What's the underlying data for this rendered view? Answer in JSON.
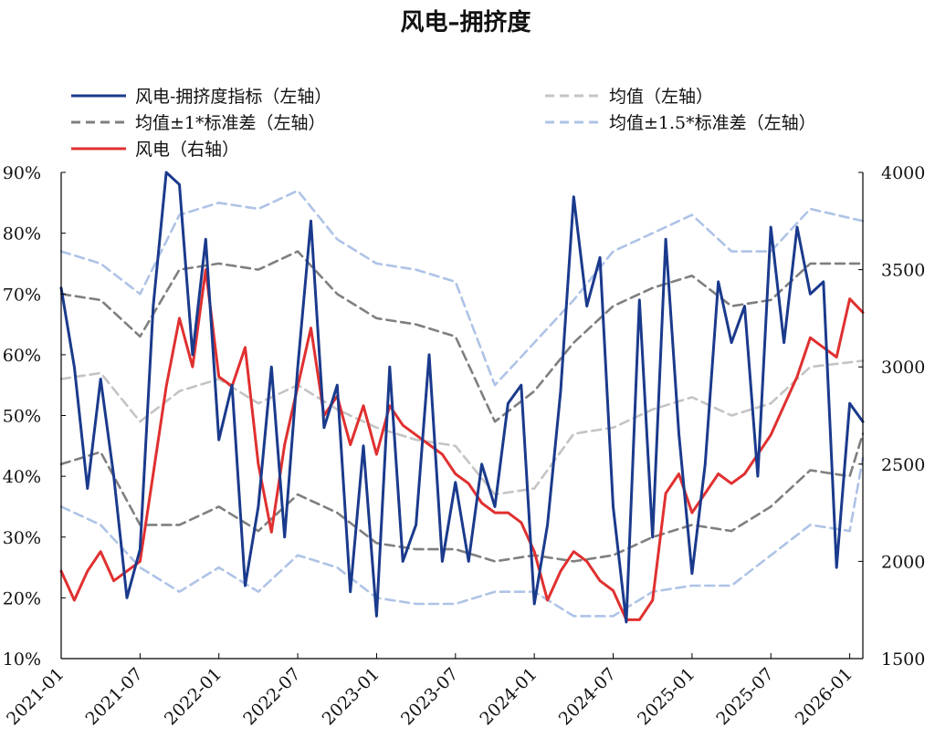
{
  "chart_data": {
    "type": "line",
    "title": "风电–拥挤度",
    "x_axis": {
      "type": "date",
      "range": [
        "2021-01",
        "2026-02"
      ],
      "ticks": [
        "2021-01",
        "2021-07",
        "2022-01",
        "2022-07",
        "2023-01",
        "2023-07",
        "2024-01",
        "2024-07",
        "2025-01",
        "2025-07",
        "2026-01"
      ]
    },
    "y_left": {
      "range": [
        10,
        90
      ],
      "ticks": [
        90,
        80,
        70,
        60,
        50,
        40,
        30,
        20,
        10
      ],
      "tick_labels": [
        "90%",
        "80%",
        "70%",
        "60%",
        "50%",
        "40%",
        "30%",
        "20%",
        "10%"
      ]
    },
    "y_right": {
      "range": [
        1500,
        4000
      ],
      "ticks": [
        4000,
        3500,
        3000,
        2500,
        2000,
        1500
      ],
      "tick_labels": [
        "4000",
        "3500",
        "3000",
        "2500",
        "2000",
        "1500"
      ]
    },
    "grid": false,
    "legend_position": "top",
    "series": [
      {
        "name": "风电-拥挤度指标（左轴）",
        "axis": "left",
        "color": "#1a3a8c",
        "dash": "solid",
        "points": [
          [
            "2021-01",
            71
          ],
          [
            "2021-02",
            58
          ],
          [
            "2021-03",
            38
          ],
          [
            "2021-04",
            56
          ],
          [
            "2021-05",
            40
          ],
          [
            "2021-06",
            20
          ],
          [
            "2021-07",
            28
          ],
          [
            "2021-08",
            68
          ],
          [
            "2021-09",
            90
          ],
          [
            "2021-10",
            88
          ],
          [
            "2021-11",
            60
          ],
          [
            "2021-12",
            79
          ],
          [
            "2022-01",
            46
          ],
          [
            "2022-02",
            55
          ],
          [
            "2022-03",
            22
          ],
          [
            "2022-04",
            35
          ],
          [
            "2022-05",
            58
          ],
          [
            "2022-06",
            30
          ],
          [
            "2022-07",
            58
          ],
          [
            "2022-08",
            82
          ],
          [
            "2022-09",
            48
          ],
          [
            "2022-10",
            55
          ],
          [
            "2022-11",
            21
          ],
          [
            "2022-12",
            45
          ],
          [
            "2023-01",
            17
          ],
          [
            "2023-02",
            58
          ],
          [
            "2023-03",
            26
          ],
          [
            "2023-04",
            32
          ],
          [
            "2023-05",
            60
          ],
          [
            "2023-06",
            26
          ],
          [
            "2023-07",
            39
          ],
          [
            "2023-08",
            26
          ],
          [
            "2023-09",
            42
          ],
          [
            "2023-10",
            35
          ],
          [
            "2023-11",
            52
          ],
          [
            "2023-12",
            55
          ],
          [
            "2024-01",
            19
          ],
          [
            "2024-02",
            32
          ],
          [
            "2024-03",
            54
          ],
          [
            "2024-04",
            86
          ],
          [
            "2024-05",
            68
          ],
          [
            "2024-06",
            76
          ],
          [
            "2024-07",
            35
          ],
          [
            "2024-08",
            16
          ],
          [
            "2024-09",
            69
          ],
          [
            "2024-10",
            30
          ],
          [
            "2024-11",
            79
          ],
          [
            "2024-12",
            47
          ],
          [
            "2025-01",
            24
          ],
          [
            "2025-02",
            42
          ],
          [
            "2025-03",
            72
          ],
          [
            "2025-04",
            62
          ],
          [
            "2025-05",
            68
          ],
          [
            "2025-06",
            40
          ],
          [
            "2025-07",
            81
          ],
          [
            "2025-08",
            62
          ],
          [
            "2025-09",
            81
          ],
          [
            "2025-10",
            70
          ],
          [
            "2025-11",
            72
          ],
          [
            "2025-12",
            25
          ],
          [
            "2026-01",
            52
          ],
          [
            "2026-02",
            49
          ]
        ]
      },
      {
        "name": "均值（左轴）",
        "axis": "left",
        "color": "#c4c4c4",
        "dash": "dashed",
        "points": [
          [
            "2021-01",
            56
          ],
          [
            "2021-04",
            57
          ],
          [
            "2021-07",
            49
          ],
          [
            "2021-10",
            54
          ],
          [
            "2022-01",
            56
          ],
          [
            "2022-04",
            52
          ],
          [
            "2022-07",
            55
          ],
          [
            "2022-10",
            51
          ],
          [
            "2023-01",
            48
          ],
          [
            "2023-04",
            46
          ],
          [
            "2023-07",
            45
          ],
          [
            "2023-10",
            37
          ],
          [
            "2024-01",
            38
          ],
          [
            "2024-04",
            47
          ],
          [
            "2024-07",
            48
          ],
          [
            "2024-10",
            51
          ],
          [
            "2025-01",
            53
          ],
          [
            "2025-04",
            50
          ],
          [
            "2025-07",
            52
          ],
          [
            "2025-10",
            58
          ],
          [
            "2026-02",
            59
          ]
        ]
      },
      {
        "name": "均值±1*标准差（左轴）",
        "axis": "left",
        "color": "#7f7f7f",
        "dash": "dashed",
        "upper": [
          [
            "2021-01",
            70
          ],
          [
            "2021-04",
            69
          ],
          [
            "2021-07",
            63
          ],
          [
            "2021-10",
            74
          ],
          [
            "2022-01",
            75
          ],
          [
            "2022-04",
            74
          ],
          [
            "2022-07",
            77
          ],
          [
            "2022-10",
            70
          ],
          [
            "2023-01",
            66
          ],
          [
            "2023-04",
            65
          ],
          [
            "2023-07",
            63
          ],
          [
            "2023-10",
            49
          ],
          [
            "2024-01",
            54
          ],
          [
            "2024-04",
            62
          ],
          [
            "2024-07",
            68
          ],
          [
            "2024-10",
            71
          ],
          [
            "2025-01",
            73
          ],
          [
            "2025-04",
            68
          ],
          [
            "2025-07",
            69
          ],
          [
            "2025-10",
            75
          ],
          [
            "2026-02",
            75
          ]
        ],
        "lower": [
          [
            "2021-01",
            42
          ],
          [
            "2021-04",
            44
          ],
          [
            "2021-07",
            32
          ],
          [
            "2021-10",
            32
          ],
          [
            "2022-01",
            35
          ],
          [
            "2022-04",
            31
          ],
          [
            "2022-07",
            37
          ],
          [
            "2022-10",
            34
          ],
          [
            "2023-01",
            29
          ],
          [
            "2023-04",
            28
          ],
          [
            "2023-07",
            28
          ],
          [
            "2023-10",
            26
          ],
          [
            "2024-01",
            27
          ],
          [
            "2024-04",
            26
          ],
          [
            "2024-07",
            27
          ],
          [
            "2024-10",
            30
          ],
          [
            "2025-01",
            32
          ],
          [
            "2025-04",
            31
          ],
          [
            "2025-07",
            35
          ],
          [
            "2025-10",
            41
          ],
          [
            "2026-01",
            40
          ],
          [
            "2026-02",
            47
          ]
        ]
      },
      {
        "name": "均值±1.5*标准差（左轴）",
        "axis": "left",
        "color": "#aec3e6",
        "dash": "dashed",
        "upper": [
          [
            "2021-01",
            77
          ],
          [
            "2021-04",
            75
          ],
          [
            "2021-07",
            70
          ],
          [
            "2021-10",
            83
          ],
          [
            "2022-01",
            85
          ],
          [
            "2022-04",
            84
          ],
          [
            "2022-07",
            87
          ],
          [
            "2022-10",
            79
          ],
          [
            "2023-01",
            75
          ],
          [
            "2023-04",
            74
          ],
          [
            "2023-07",
            72
          ],
          [
            "2023-10",
            55
          ],
          [
            "2024-01",
            62
          ],
          [
            "2024-04",
            69
          ],
          [
            "2024-07",
            77
          ],
          [
            "2024-10",
            80
          ],
          [
            "2025-01",
            83
          ],
          [
            "2025-04",
            77
          ],
          [
            "2025-07",
            77
          ],
          [
            "2025-10",
            84
          ],
          [
            "2026-02",
            82
          ]
        ],
        "lower": [
          [
            "2021-01",
            35
          ],
          [
            "2021-04",
            32
          ],
          [
            "2021-07",
            25
          ],
          [
            "2021-10",
            21
          ],
          [
            "2022-01",
            25
          ],
          [
            "2022-04",
            21
          ],
          [
            "2022-07",
            27
          ],
          [
            "2022-10",
            25
          ],
          [
            "2023-01",
            20
          ],
          [
            "2023-04",
            19
          ],
          [
            "2023-07",
            19
          ],
          [
            "2023-10",
            21
          ],
          [
            "2024-01",
            21
          ],
          [
            "2024-04",
            17
          ],
          [
            "2024-07",
            17
          ],
          [
            "2024-10",
            21
          ],
          [
            "2025-01",
            22
          ],
          [
            "2025-04",
            22
          ],
          [
            "2025-07",
            27
          ],
          [
            "2025-10",
            32
          ],
          [
            "2026-01",
            31
          ],
          [
            "2026-02",
            43
          ]
        ]
      },
      {
        "name": "风电（右轴）",
        "axis": "right",
        "color": "#e03030",
        "dash": "solid",
        "points": [
          [
            "2021-01",
            1950
          ],
          [
            "2021-02",
            1800
          ],
          [
            "2021-03",
            1950
          ],
          [
            "2021-04",
            2050
          ],
          [
            "2021-05",
            1900
          ],
          [
            "2021-06",
            1950
          ],
          [
            "2021-07",
            2000
          ],
          [
            "2021-08",
            2450
          ],
          [
            "2021-09",
            2900
          ],
          [
            "2021-10",
            3250
          ],
          [
            "2021-11",
            3000
          ],
          [
            "2021-12",
            3500
          ],
          [
            "2022-01",
            2950
          ],
          [
            "2022-02",
            2900
          ],
          [
            "2022-03",
            3100
          ],
          [
            "2022-04",
            2500
          ],
          [
            "2022-05",
            2150
          ],
          [
            "2022-06",
            2600
          ],
          [
            "2022-07",
            2900
          ],
          [
            "2022-08",
            3200
          ],
          [
            "2022-09",
            2750
          ],
          [
            "2022-10",
            2850
          ],
          [
            "2022-11",
            2600
          ],
          [
            "2022-12",
            2800
          ],
          [
            "2023-01",
            2550
          ],
          [
            "2023-02",
            2800
          ],
          [
            "2023-03",
            2700
          ],
          [
            "2023-04",
            2650
          ],
          [
            "2023-05",
            2600
          ],
          [
            "2023-06",
            2550
          ],
          [
            "2023-07",
            2450
          ],
          [
            "2023-08",
            2400
          ],
          [
            "2023-09",
            2300
          ],
          [
            "2023-10",
            2250
          ],
          [
            "2023-11",
            2250
          ],
          [
            "2023-12",
            2200
          ],
          [
            "2024-01",
            2050
          ],
          [
            "2024-02",
            1800
          ],
          [
            "2024-03",
            1950
          ],
          [
            "2024-04",
            2050
          ],
          [
            "2024-05",
            2000
          ],
          [
            "2024-06",
            1900
          ],
          [
            "2024-07",
            1850
          ],
          [
            "2024-08",
            1700
          ],
          [
            "2024-09",
            1700
          ],
          [
            "2024-10",
            1800
          ],
          [
            "2024-11",
            2350
          ],
          [
            "2024-12",
            2450
          ],
          [
            "2025-01",
            2250
          ],
          [
            "2025-02",
            2350
          ],
          [
            "2025-03",
            2450
          ],
          [
            "2025-04",
            2400
          ],
          [
            "2025-05",
            2450
          ],
          [
            "2025-06",
            2550
          ],
          [
            "2025-07",
            2650
          ],
          [
            "2025-08",
            2800
          ],
          [
            "2025-09",
            2950
          ],
          [
            "2025-10",
            3150
          ],
          [
            "2025-11",
            3100
          ],
          [
            "2025-12",
            3050
          ],
          [
            "2026-01",
            3350
          ],
          [
            "2026-02",
            3280
          ]
        ]
      }
    ]
  }
}
